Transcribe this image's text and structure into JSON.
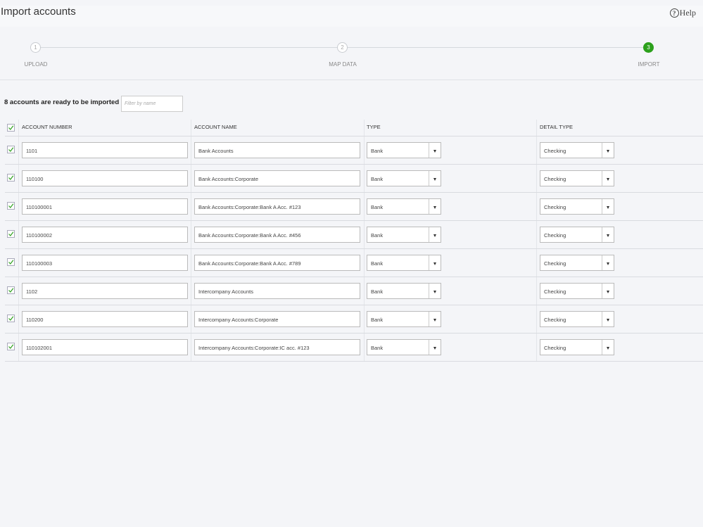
{
  "header": {
    "title": "Import accounts",
    "help": {
      "icon": "?",
      "label": "Help"
    }
  },
  "steps": [
    {
      "number": "1",
      "label": "UPLOAD",
      "state": "done"
    },
    {
      "number": "2",
      "label": "MAP DATA",
      "state": "done"
    },
    {
      "number": "3",
      "label": "IMPORT",
      "state": "current"
    }
  ],
  "toolbar": {
    "summary": "8 accounts are ready to be imported",
    "filter_placeholder": "Filter by name"
  },
  "table": {
    "select_all": true,
    "columns": [
      "ACCOUNT NUMBER",
      "ACCOUNT NAME",
      "TYPE",
      "DETAIL TYPE"
    ],
    "rows": [
      {
        "checked": true,
        "cells": [
          "1101",
          "Bank Accounts",
          "Bank",
          "Checking"
        ]
      },
      {
        "checked": true,
        "cells": [
          "110100",
          "Bank Accounts:Corporate",
          "Bank",
          "Checking"
        ]
      },
      {
        "checked": true,
        "cells": [
          "110100001",
          "Bank Accounts:Corporate:Bank A Acc. #123",
          "Bank",
          "Checking"
        ]
      },
      {
        "checked": true,
        "cells": [
          "110100002",
          "Bank Accounts:Corporate:Bank A Acc. #456",
          "Bank",
          "Checking"
        ]
      },
      {
        "checked": true,
        "cells": [
          "110100003",
          "Bank Accounts:Corporate:Bank A Acc. #789",
          "Bank",
          "Checking"
        ]
      },
      {
        "checked": true,
        "cells": [
          "1102",
          "Intercompany Accounts",
          "Bank",
          "Checking"
        ]
      },
      {
        "checked": true,
        "cells": [
          "110200",
          "Intercompany Accounts:Corporate",
          "Bank",
          "Checking"
        ]
      },
      {
        "checked": true,
        "cells": [
          "110102001",
          "Intercompany Accounts:Corporate:IC acc. #123",
          "Bank",
          "Checking"
        ]
      }
    ]
  }
}
